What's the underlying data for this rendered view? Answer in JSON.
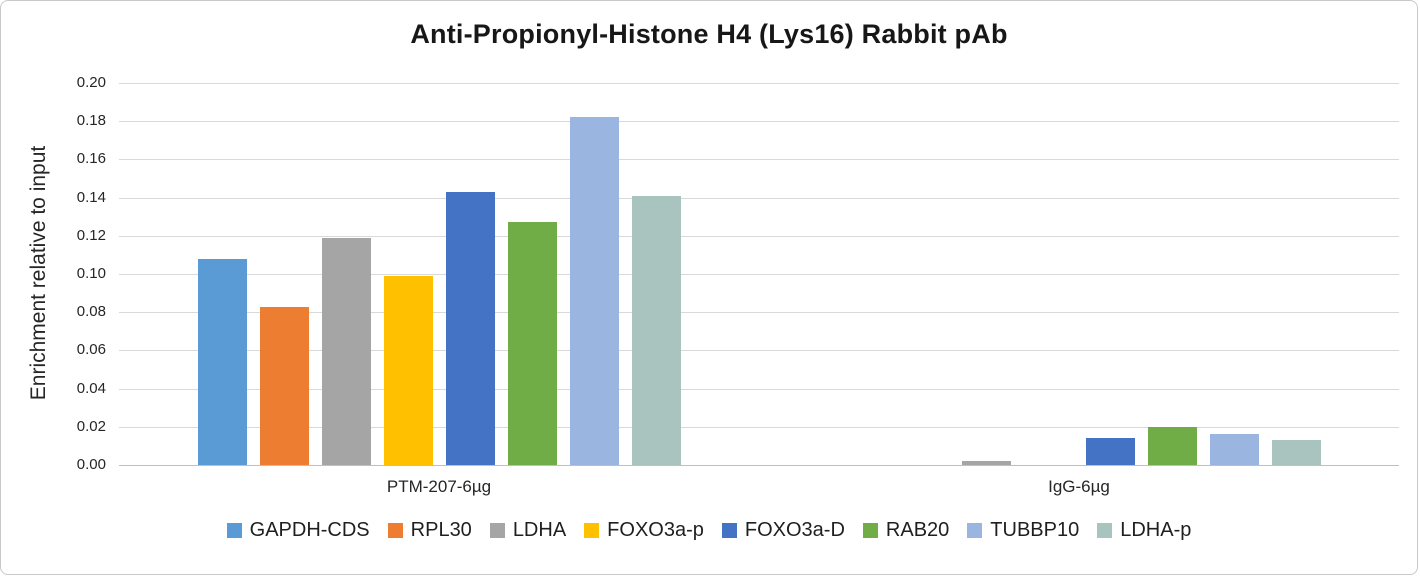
{
  "chart_data": {
    "type": "bar",
    "title": "Anti-Propionyl-Histone H4 (Lys16) Rabbit pAb",
    "xlabel": "",
    "ylabel": "Enrichment relative to input",
    "ylim": [
      0,
      0.2
    ],
    "ytick_step": 0.02,
    "ytick_format_decimals": 2,
    "grid": true,
    "legend_position": "bottom",
    "categories": [
      "PTM-207-6µg",
      "IgG-6µg"
    ],
    "series": [
      {
        "name": "GAPDH-CDS",
        "color": "#5B9BD5",
        "values": [
          0.108,
          0.0
        ]
      },
      {
        "name": "RPL30",
        "color": "#ED7D31",
        "values": [
          0.083,
          0.0
        ]
      },
      {
        "name": "LDHA",
        "color": "#A5A5A5",
        "values": [
          0.119,
          0.002
        ]
      },
      {
        "name": "FOXO3a-p",
        "color": "#FFC000",
        "values": [
          0.099,
          0.0
        ]
      },
      {
        "name": "FOXO3a-D",
        "color": "#4472C4",
        "values": [
          0.143,
          0.014
        ]
      },
      {
        "name": "RAB20",
        "color": "#70AD47",
        "values": [
          0.127,
          0.02
        ]
      },
      {
        "name": "TUBBP10",
        "color": "#9AB5DF",
        "values": [
          0.182,
          0.016
        ]
      },
      {
        "name": "LDHA-p",
        "color": "#A9C4BE",
        "values": [
          0.141,
          0.013
        ]
      }
    ],
    "gridline_color": "#D9D9D9",
    "axis_line_color": "#BFBFBF",
    "text_color": "#262626"
  }
}
